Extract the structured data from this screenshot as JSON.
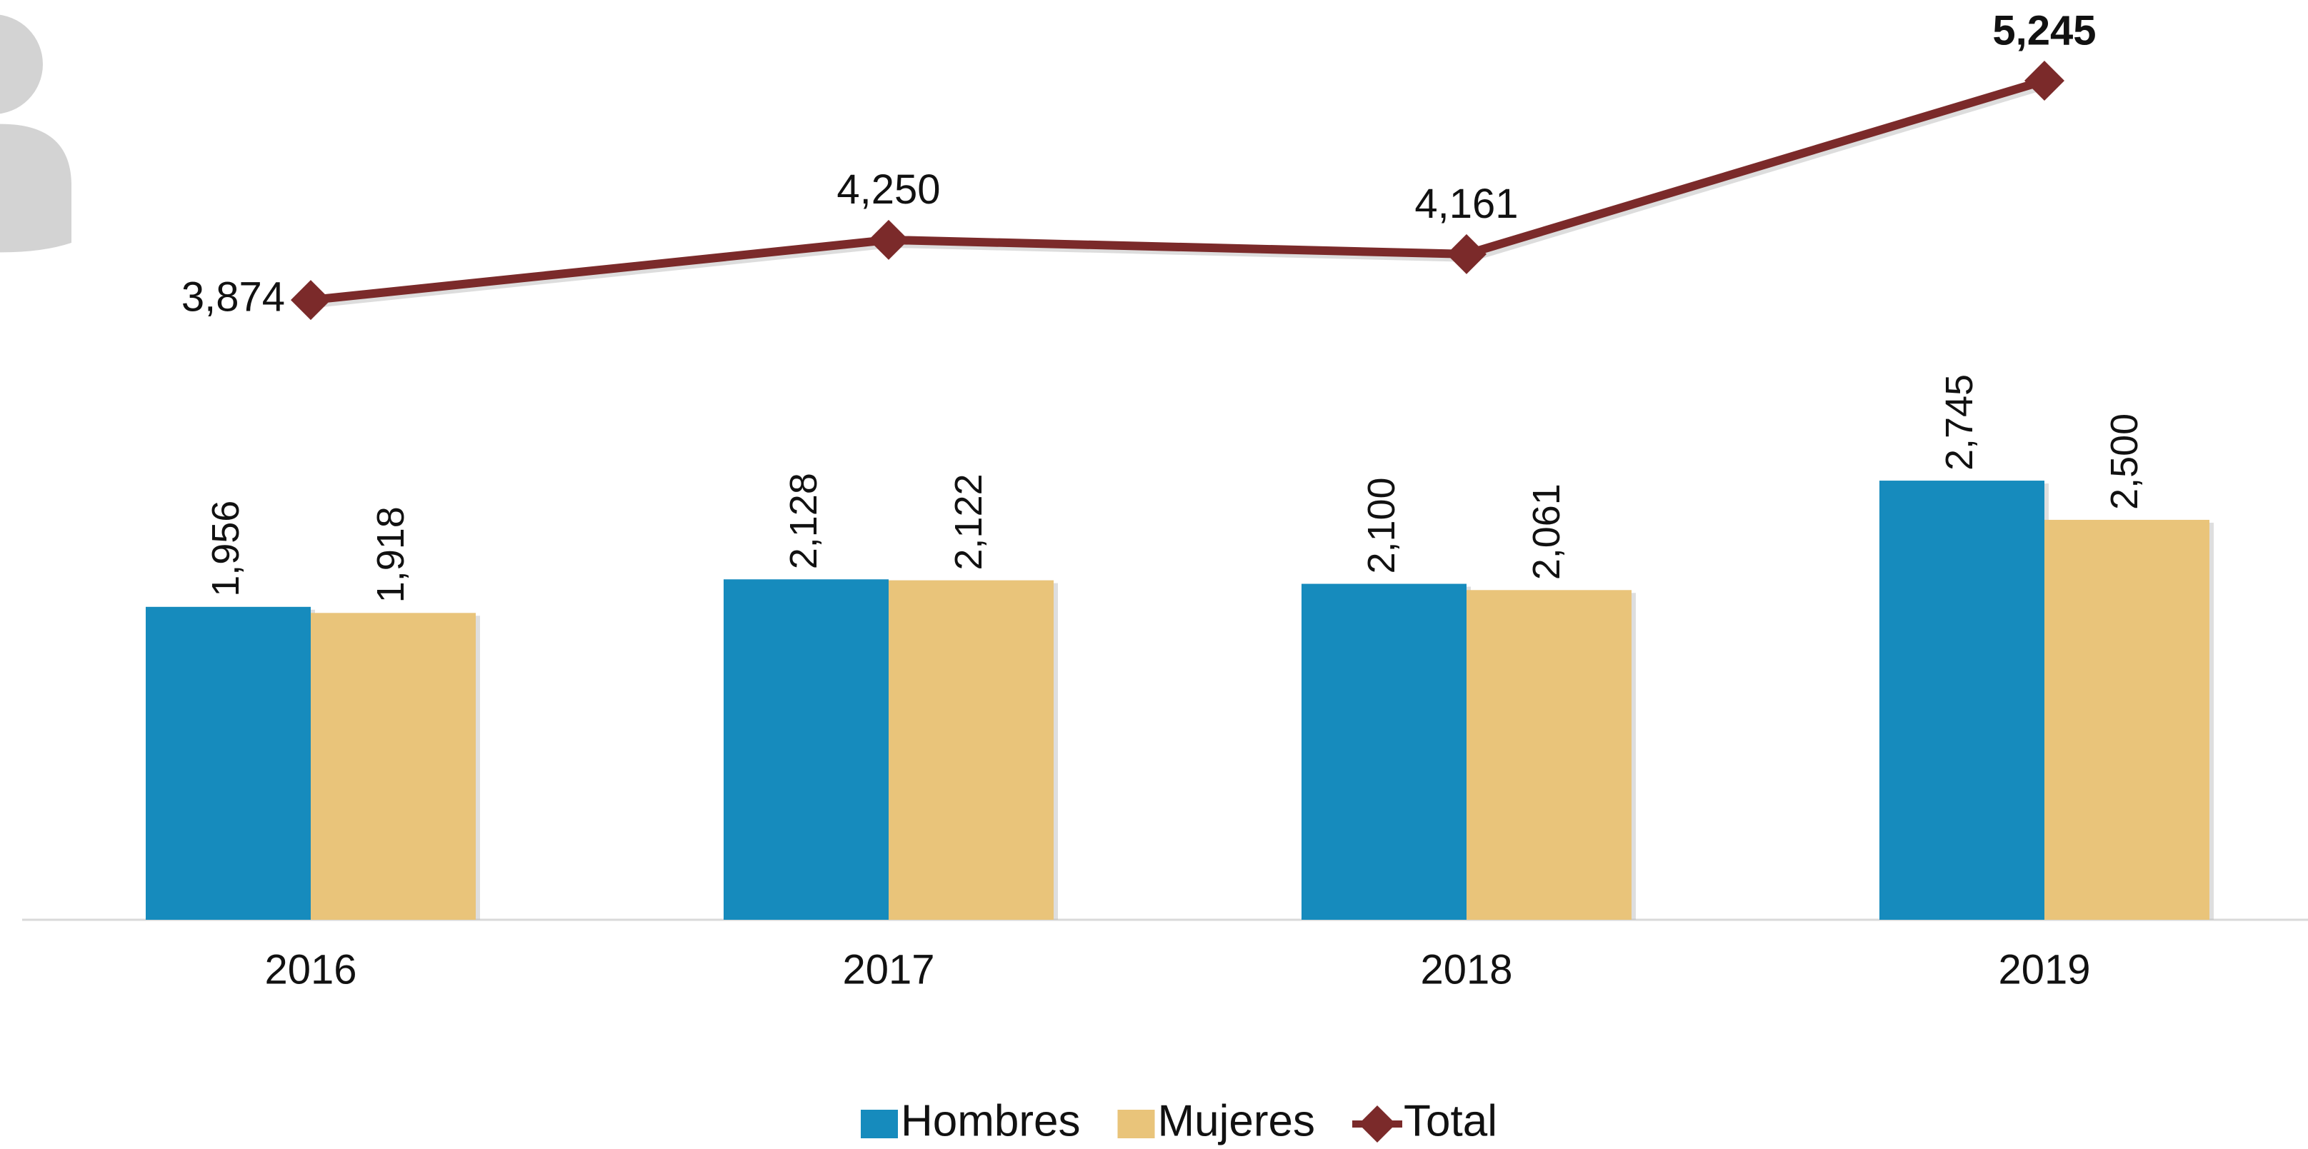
{
  "chart_data": {
    "type": "bar+line",
    "categories": [
      "2016",
      "2017",
      "2018",
      "2019"
    ],
    "series": [
      {
        "name": "Hombres",
        "color": "#168bbd",
        "type": "bar",
        "values": [
          1956,
          2128,
          2100,
          2745
        ],
        "value_labels": [
          "1,956",
          "2,128",
          "2,100",
          "2,745"
        ]
      },
      {
        "name": "Mujeres",
        "color": "#e9c47a",
        "type": "bar",
        "values": [
          1918,
          2122,
          2061,
          2500
        ],
        "value_labels": [
          "1,918",
          "2,122",
          "2,061",
          "2,500"
        ]
      },
      {
        "name": "Total",
        "color": "#7b2a2a",
        "type": "line",
        "values": [
          3874,
          4250,
          4161,
          5245
        ],
        "value_labels": [
          "3,874",
          "4,250",
          "4,161",
          "5,245"
        ]
      }
    ],
    "legend": "bottom"
  }
}
